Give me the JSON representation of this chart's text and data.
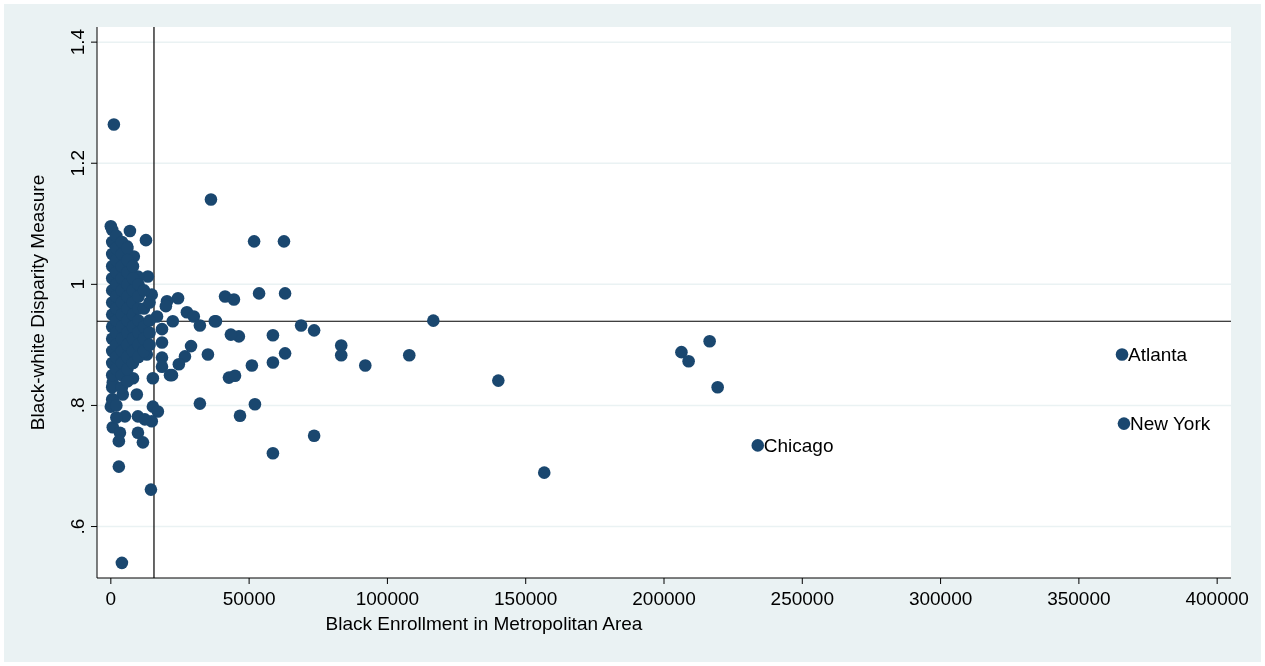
{
  "chart_data": {
    "type": "scatter",
    "xlabel": "Black Enrollment in Metropolitan Area",
    "ylabel": "Black-white Disparity Measure",
    "xlim": [
      -5000,
      405000
    ],
    "xticks": [
      0,
      50000,
      100000,
      150000,
      200000,
      250000,
      300000,
      350000,
      400000
    ],
    "ylim": [
      0.515,
      1.425
    ],
    "yticks": [
      {
        "value": 0.6,
        "label": ".6"
      },
      {
        "value": 0.8,
        "label": ".8"
      },
      1,
      1.2,
      1.4
    ],
    "grid": "y",
    "marker": "circle",
    "ref_lines": [
      {
        "axis": "x",
        "value": 15600,
        "color": "#000000"
      },
      {
        "axis": "y",
        "value": 0.939,
        "color": "#000000"
      }
    ],
    "annotations": [
      {
        "text": "Atlanta",
        "x": 365600,
        "y": 0.884
      },
      {
        "text": "New York",
        "x": 366300,
        "y": 0.77
      },
      {
        "text": "Chicago",
        "x": 233900,
        "y": 0.734
      }
    ],
    "series": [
      {
        "color": "#1a476f",
        "x": [
          1100,
          36200,
          4000,
          14500,
          2900,
          51800,
          62600,
          12700,
          41300,
          44500,
          53600,
          63000,
          68800,
          73500,
          83300,
          83300,
          92000,
          107900,
          116600,
          140100,
          156700,
          206300,
          208900,
          216500,
          219400,
          233900,
          365600,
          366300,
          73500,
          58600,
          46700,
          52100,
          32200,
          42700,
          44900,
          58600,
          51000,
          63000,
          58600,
          46300,
          43400,
          37600,
          35100,
          24300,
          27500,
          30000,
          32200,
          38000,
          29000,
          26800,
          24600,
          22100,
          0,
          6900,
          5800,
          8300,
          13400,
          9800,
          14800,
          20300,
          16700,
          19900,
          18500,
          22400,
          18500,
          13000,
          18500,
          18500,
          15200,
          21400,
          8000,
          9400,
          4300,
          15200,
          17000,
          14800,
          9800,
          12300,
          5100,
          700,
          3300,
          2900,
          9800,
          11600,
          700,
          700,
          0,
          500,
          500,
          500,
          500,
          500,
          500,
          500,
          500,
          500,
          500,
          500,
          500,
          500,
          500,
          500,
          2000,
          2000,
          2000,
          2000,
          2000,
          2000,
          2000,
          2000,
          2000,
          2000,
          2000,
          2000,
          2000,
          2000,
          4000,
          4000,
          4000,
          4000,
          4000,
          4000,
          4000,
          4000,
          4000,
          4000,
          4000,
          4000,
          4000,
          6000,
          6000,
          6000,
          6000,
          6000,
          6000,
          6000,
          6000,
          6000,
          6000,
          6000,
          6000,
          8000,
          8000,
          8000,
          8000,
          8000,
          8000,
          8000,
          8000,
          8000,
          10000,
          10000,
          10000,
          10000,
          10000,
          10000,
          10000,
          12000,
          12000,
          12000,
          12000,
          12000,
          14000,
          14000,
          14000,
          14000
        ],
        "values": [
          1.264,
          1.14,
          0.54,
          0.661,
          0.699,
          1.071,
          1.071,
          1.073,
          0.98,
          0.975,
          0.985,
          0.985,
          0.932,
          0.924,
          0.899,
          0.883,
          0.866,
          0.883,
          0.94,
          0.841,
          0.689,
          0.888,
          0.873,
          0.906,
          0.83,
          0.734,
          0.884,
          0.77,
          0.75,
          0.721,
          0.783,
          0.802,
          0.803,
          0.846,
          0.849,
          0.871,
          0.866,
          0.886,
          0.916,
          0.914,
          0.917,
          0.939,
          0.884,
          0.977,
          0.954,
          0.947,
          0.932,
          0.939,
          0.898,
          0.881,
          0.868,
          0.85,
          1.096,
          1.088,
          1.063,
          1.046,
          1.013,
          1.013,
          0.983,
          0.972,
          0.947,
          0.964,
          0.926,
          0.939,
          0.904,
          0.884,
          0.879,
          0.864,
          0.845,
          0.85,
          0.845,
          0.818,
          0.818,
          0.798,
          0.79,
          0.774,
          0.782,
          0.777,
          0.782,
          0.764,
          0.755,
          0.741,
          0.755,
          0.739,
          0.81,
          0.838,
          0.798,
          1.09,
          1.07,
          1.05,
          1.03,
          1.01,
          0.99,
          0.97,
          0.95,
          0.93,
          0.91,
          0.89,
          0.87,
          0.85,
          0.83,
          0.81,
          1.08,
          1.06,
          1.04,
          1.02,
          1.0,
          0.98,
          0.96,
          0.94,
          0.92,
          0.9,
          0.88,
          0.86,
          0.8,
          0.78,
          1.07,
          1.05,
          1.03,
          1.01,
          0.99,
          0.97,
          0.95,
          0.93,
          0.91,
          0.89,
          0.87,
          0.85,
          0.83,
          1.06,
          1.04,
          1.02,
          1.0,
          0.98,
          0.96,
          0.94,
          0.92,
          0.9,
          0.88,
          0.86,
          0.84,
          1.03,
          1.01,
          0.99,
          0.97,
          0.95,
          0.93,
          0.91,
          0.89,
          0.87,
          1.0,
          0.98,
          0.96,
          0.94,
          0.92,
          0.9,
          0.88,
          0.99,
          0.96,
          0.93,
          0.91,
          0.89,
          0.97,
          0.94,
          0.92,
          0.9
        ]
      }
    ]
  }
}
